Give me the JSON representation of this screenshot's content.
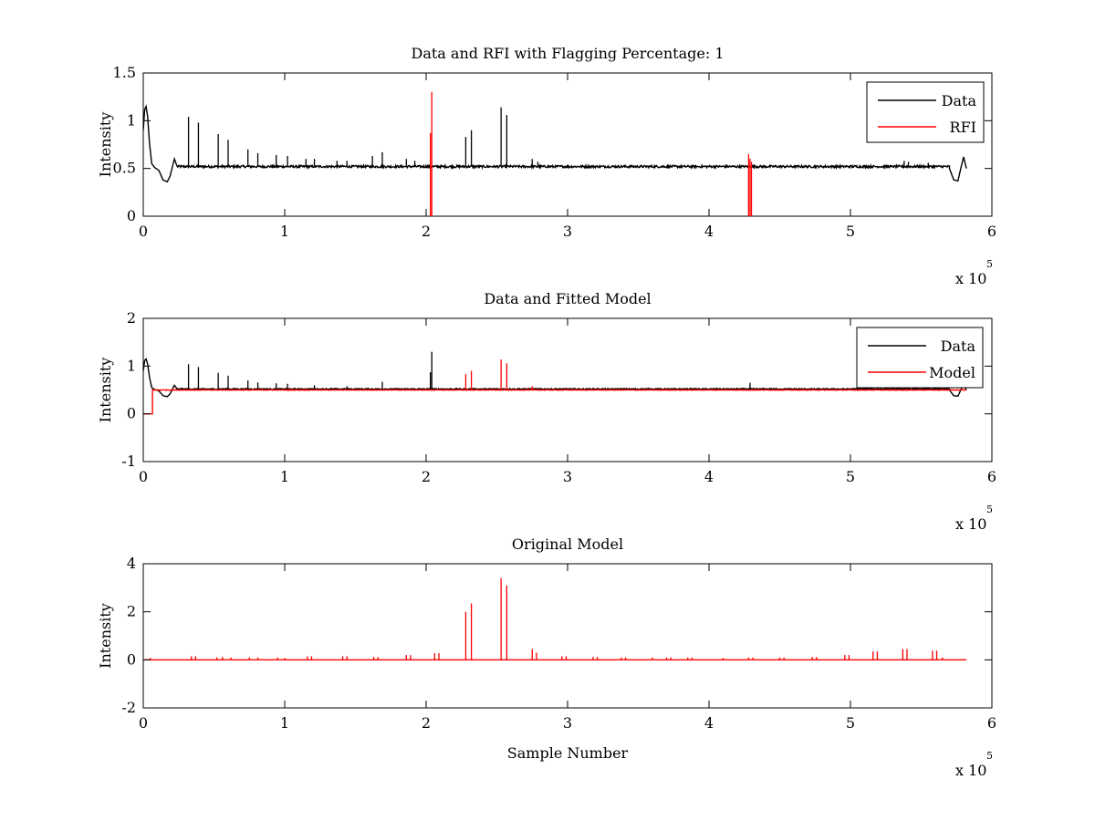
{
  "chart_data": [
    {
      "type": "line",
      "title": "Data and RFI with Flagging Percentage: 1",
      "xlabel": "",
      "ylabel": "Intensity",
      "xlim": [
        0,
        6
      ],
      "ylim": [
        0,
        1.5
      ],
      "x_multiplier_label": "x 10",
      "x_multiplier_exponent": "5",
      "xticks": [
        "0",
        "1",
        "2",
        "3",
        "4",
        "5",
        "6"
      ],
      "yticks": [
        "0",
        "0.5",
        "1",
        "1.5"
      ],
      "legend": {
        "placement": "top-right",
        "entries": [
          "Data",
          "RFI"
        ]
      },
      "series": [
        {
          "name": "Data",
          "color": "#000000",
          "baseline": 0.52,
          "noise": 0.012,
          "x_end": 5.82,
          "features": [
            {
              "type": "curve",
              "points": [
                [
                  0,
                  0.9
                ],
                [
                  0.01,
                  1.12
                ],
                [
                  0.02,
                  1.15
                ],
                [
                  0.03,
                  1.05
                ],
                [
                  0.045,
                  0.75
                ],
                [
                  0.06,
                  0.55
                ],
                [
                  0.08,
                  0.51
                ],
                [
                  0.11,
                  0.48
                ],
                [
                  0.14,
                  0.38
                ],
                [
                  0.17,
                  0.36
                ],
                [
                  0.19,
                  0.42
                ],
                [
                  0.22,
                  0.6
                ],
                [
                  0.24,
                  0.52
                ]
              ]
            },
            {
              "type": "curve",
              "points": [
                [
                  5.7,
                  0.5
                ],
                [
                  5.73,
                  0.38
                ],
                [
                  5.76,
                  0.37
                ],
                [
                  5.78,
                  0.5
                ],
                [
                  5.8,
                  0.62
                ],
                [
                  5.82,
                  0.5
                ]
              ]
            }
          ],
          "spikes": [
            [
              0.32,
              1.04
            ],
            [
              0.39,
              0.98
            ],
            [
              0.53,
              0.86
            ],
            [
              0.6,
              0.8
            ],
            [
              0.74,
              0.7
            ],
            [
              0.81,
              0.66
            ],
            [
              0.94,
              0.64
            ],
            [
              1.02,
              0.63
            ],
            [
              1.15,
              0.6
            ],
            [
              1.21,
              0.6
            ],
            [
              1.37,
              0.58
            ],
            [
              1.44,
              0.58
            ],
            [
              1.62,
              0.63
            ],
            [
              1.69,
              0.67
            ],
            [
              1.86,
              0.6
            ],
            [
              1.92,
              0.58
            ],
            [
              2.28,
              0.83
            ],
            [
              2.32,
              0.9
            ],
            [
              2.53,
              1.14
            ],
            [
              2.57,
              1.06
            ],
            [
              2.75,
              0.6
            ],
            [
              2.79,
              0.57
            ],
            [
              5.38,
              0.58
            ],
            [
              5.41,
              0.57
            ],
            [
              5.55,
              0.56
            ]
          ]
        },
        {
          "name": "RFI",
          "color": "#ff0000",
          "spikes": [
            [
              2.03,
              0.87
            ],
            [
              2.04,
              1.3
            ],
            [
              4.28,
              0.65
            ],
            [
              4.29,
              0.6
            ],
            [
              4.3,
              0.57
            ]
          ]
        }
      ]
    },
    {
      "type": "line",
      "title": "Data and Fitted Model",
      "xlabel": "",
      "ylabel": "Intensity",
      "xlim": [
        0,
        6
      ],
      "ylim": [
        -1,
        2
      ],
      "x_multiplier_label": "x 10",
      "x_multiplier_exponent": "5",
      "xticks": [
        "0",
        "1",
        "2",
        "3",
        "4",
        "5",
        "6"
      ],
      "yticks": [
        "-1",
        "0",
        "1",
        "2"
      ],
      "legend": {
        "placement": "top-right",
        "entries": [
          "Data",
          "Model"
        ]
      },
      "series": [
        {
          "name": "Data",
          "color": "#000000",
          "baseline": 0.52,
          "noise": 0.012,
          "x_end": 5.82,
          "features": [
            {
              "type": "curve",
              "points": [
                [
                  0,
                  0.9
                ],
                [
                  0.01,
                  1.12
                ],
                [
                  0.02,
                  1.15
                ],
                [
                  0.03,
                  1.05
                ],
                [
                  0.045,
                  0.75
                ],
                [
                  0.06,
                  0.55
                ],
                [
                  0.08,
                  0.51
                ],
                [
                  0.11,
                  0.48
                ],
                [
                  0.14,
                  0.38
                ],
                [
                  0.17,
                  0.36
                ],
                [
                  0.19,
                  0.42
                ],
                [
                  0.22,
                  0.6
                ],
                [
                  0.24,
                  0.52
                ]
              ]
            },
            {
              "type": "curve",
              "points": [
                [
                  5.7,
                  0.5
                ],
                [
                  5.73,
                  0.38
                ],
                [
                  5.76,
                  0.37
                ],
                [
                  5.78,
                  0.5
                ],
                [
                  5.8,
                  0.62
                ],
                [
                  5.82,
                  0.5
                ]
              ]
            }
          ],
          "spikes": [
            [
              0.32,
              1.04
            ],
            [
              0.39,
              0.98
            ],
            [
              0.53,
              0.86
            ],
            [
              0.6,
              0.8
            ],
            [
              0.74,
              0.7
            ],
            [
              0.81,
              0.66
            ],
            [
              0.94,
              0.64
            ],
            [
              1.02,
              0.63
            ],
            [
              1.21,
              0.6
            ],
            [
              1.44,
              0.58
            ],
            [
              1.69,
              0.67
            ],
            [
              2.03,
              0.87
            ],
            [
              2.04,
              1.3
            ],
            [
              4.29,
              0.65
            ]
          ]
        },
        {
          "name": "Model",
          "color": "#ff0000",
          "baseline": 0.5,
          "noise": 0.006,
          "x_start": 0.065,
          "x_end": 5.82,
          "features": [
            {
              "type": "curve",
              "points": [
                [
                  0,
                  0.0
                ],
                [
                  0.065,
                  0.0
                ],
                [
                  0.065,
                  0.5
                ]
              ]
            }
          ],
          "spikes": [
            [
              2.28,
              0.83
            ],
            [
              2.32,
              0.9
            ],
            [
              2.53,
              1.14
            ],
            [
              2.57,
              1.06
            ],
            [
              2.75,
              0.58
            ]
          ]
        }
      ]
    },
    {
      "type": "line",
      "title": "Original Model",
      "xlabel": "Sample Number",
      "ylabel": "Intensity",
      "xlim": [
        0,
        6
      ],
      "ylim": [
        -2,
        4
      ],
      "x_multiplier_label": "x 10",
      "x_multiplier_exponent": "5",
      "xticks": [
        "0",
        "1",
        "2",
        "3",
        "4",
        "5",
        "6"
      ],
      "yticks": [
        "-2",
        "0",
        "2",
        "4"
      ],
      "legend": null,
      "series": [
        {
          "name": "",
          "color": "#ff0000",
          "baseline": 0.0,
          "noise": 0.0,
          "x_end": 5.82,
          "spikes": [
            [
              0.05,
              0.08
            ],
            [
              0.34,
              0.15
            ],
            [
              0.37,
              0.15
            ],
            [
              0.52,
              0.1
            ],
            [
              0.56,
              0.12
            ],
            [
              0.62,
              0.1
            ],
            [
              0.75,
              0.1
            ],
            [
              0.81,
              0.1
            ],
            [
              0.95,
              0.1
            ],
            [
              1.0,
              0.08
            ],
            [
              1.16,
              0.15
            ],
            [
              1.19,
              0.15
            ],
            [
              1.41,
              0.15
            ],
            [
              1.44,
              0.15
            ],
            [
              1.63,
              0.12
            ],
            [
              1.66,
              0.12
            ],
            [
              1.86,
              0.2
            ],
            [
              1.89,
              0.2
            ],
            [
              2.06,
              0.28
            ],
            [
              2.09,
              0.28
            ],
            [
              2.28,
              2.0
            ],
            [
              2.32,
              2.35
            ],
            [
              2.53,
              3.4
            ],
            [
              2.57,
              3.1
            ],
            [
              2.75,
              0.45
            ],
            [
              2.78,
              0.3
            ],
            [
              2.96,
              0.15
            ],
            [
              2.99,
              0.15
            ],
            [
              3.18,
              0.12
            ],
            [
              3.21,
              0.12
            ],
            [
              3.38,
              0.1
            ],
            [
              3.41,
              0.1
            ],
            [
              3.6,
              0.1
            ],
            [
              3.7,
              0.1
            ],
            [
              3.73,
              0.1
            ],
            [
              3.85,
              0.1
            ],
            [
              3.88,
              0.1
            ],
            [
              4.1,
              0.08
            ],
            [
              4.28,
              0.1
            ],
            [
              4.31,
              0.1
            ],
            [
              4.5,
              0.1
            ],
            [
              4.53,
              0.1
            ],
            [
              4.73,
              0.12
            ],
            [
              4.76,
              0.12
            ],
            [
              4.96,
              0.2
            ],
            [
              4.99,
              0.2
            ],
            [
              5.16,
              0.35
            ],
            [
              5.19,
              0.35
            ],
            [
              5.37,
              0.45
            ],
            [
              5.4,
              0.45
            ],
            [
              5.58,
              0.38
            ],
            [
              5.61,
              0.38
            ],
            [
              5.65,
              0.1
            ]
          ]
        }
      ]
    }
  ]
}
